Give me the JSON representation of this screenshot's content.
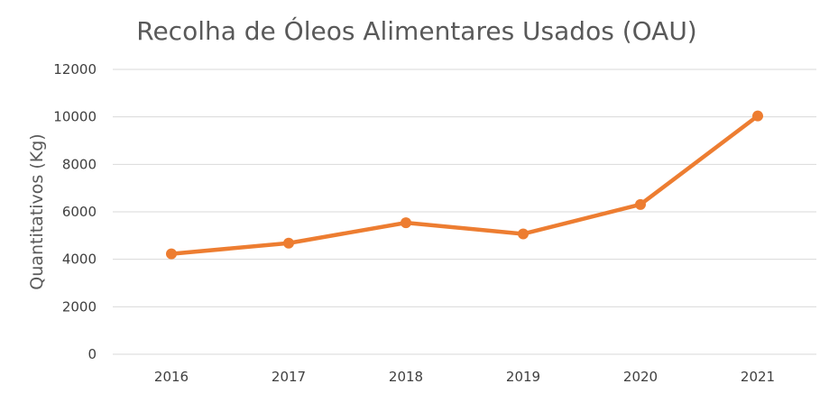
{
  "chart_data": {
    "type": "line",
    "title": "Recolha de Óleos Alimentares Usados (OAU)",
    "xlabel": "",
    "ylabel": "Quantitativos (Kg)",
    "categories": [
      "2016",
      "2017",
      "2018",
      "2019",
      "2020",
      "2021"
    ],
    "series": [
      {
        "values": [
          4230,
          4680,
          5540,
          5070,
          6310,
          10040
        ]
      }
    ],
    "ylim": [
      0,
      12000
    ],
    "yticks": [
      "0",
      "2000",
      "4000",
      "6000",
      "8000",
      "10000",
      "12000"
    ],
    "grid": true,
    "legend": "none",
    "colors": {
      "series": "#ED7D31",
      "grid": "#D9D9D9",
      "text": "#595959"
    }
  }
}
